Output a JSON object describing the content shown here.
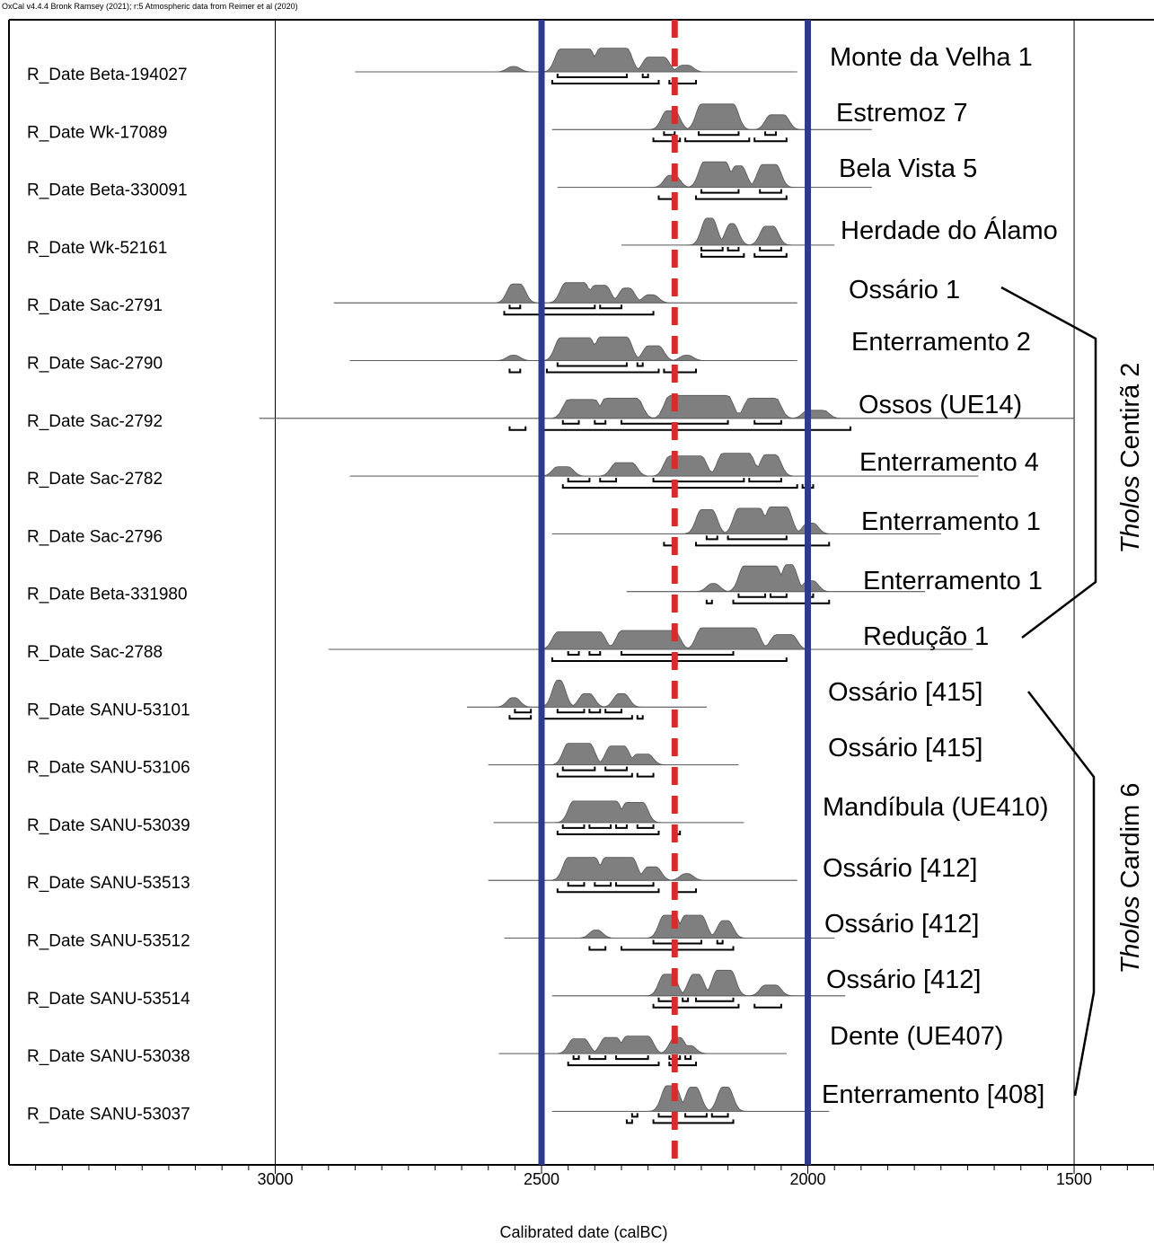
{
  "header": "OxCal v4.4.4 Bronk Ramsey (2021); r:5 Atmospheric data from Reimer et al (2020)",
  "chart_data": {
    "type": "density",
    "xlabel": "Calibrated date (calBC)",
    "xlim": [
      3500,
      1350
    ],
    "x_ticks": [
      3000,
      2500,
      2000,
      1500
    ],
    "x_tick_labels": [
      "3000",
      "2500",
      "2000",
      "1500"
    ],
    "reference_lines": [
      {
        "type": "solid",
        "value": 2500,
        "color": "#2e3a8c"
      },
      {
        "type": "solid",
        "value": 2000,
        "color": "#2e3a8c"
      },
      {
        "type": "dashed",
        "value": 2250,
        "color": "#d92b2b"
      }
    ],
    "rows": [
      {
        "label": "R_Date Beta-194027",
        "site": "Monte da Velha 1",
        "range": [
          2850,
          2020
        ],
        "peaks": [
          [
            2465,
            2410,
            85
          ],
          [
            2390,
            2340,
            88
          ],
          [
            2300,
            2270,
            55
          ],
          [
            2235,
            2225,
            25
          ],
          [
            2555,
            2550,
            20
          ]
        ],
        "b68": [
          [
            2470,
            2340
          ],
          [
            2310,
            2300
          ]
        ],
        "b95": [
          [
            2480,
            2280
          ],
          [
            2260,
            2210
          ]
        ]
      },
      {
        "label": "R_Date Wk-17089",
        "site": "Estremoz 7",
        "range": [
          2480,
          1880
        ],
        "peaks": [
          [
            2265,
            2250,
            70
          ],
          [
            2200,
            2140,
            95
          ],
          [
            2070,
            2045,
            55
          ]
        ],
        "b68": [
          [
            2270,
            2250
          ],
          [
            2205,
            2130
          ],
          [
            2080,
            2060
          ]
        ],
        "b95": [
          [
            2290,
            2240
          ],
          [
            2230,
            2110
          ],
          [
            2100,
            2040
          ]
        ]
      },
      {
        "label": "R_Date Beta-330091",
        "site": "Bela Vista 5",
        "range": [
          2470,
          1880
        ],
        "peaks": [
          [
            2260,
            2250,
            45
          ],
          [
            2195,
            2155,
            95
          ],
          [
            2135,
            2125,
            80
          ],
          [
            2085,
            2060,
            85
          ]
        ],
        "b68": [
          [
            2200,
            2130
          ],
          [
            2090,
            2050
          ]
        ],
        "b95": [
          [
            2280,
            2250
          ],
          [
            2210,
            2040
          ]
        ]
      },
      {
        "label": "R_Date Wk-52161",
        "site": "Herdade do Álamo",
        "range": [
          2350,
          1950
        ],
        "peaks": [
          [
            2190,
            2180,
            100
          ],
          [
            2145,
            2140,
            80
          ],
          [
            2080,
            2065,
            70
          ]
        ],
        "b68": [
          [
            2200,
            2160
          ],
          [
            2150,
            2130
          ],
          [
            2090,
            2050
          ]
        ],
        "b95": [
          [
            2200,
            2120
          ],
          [
            2100,
            2040
          ]
        ]
      },
      {
        "label": "R_Date Sac-2791",
        "site": "Ossário 1",
        "range": [
          2890,
          2020
        ],
        "peaks": [
          [
            2555,
            2540,
            70
          ],
          [
            2455,
            2420,
            75
          ],
          [
            2400,
            2380,
            65
          ],
          [
            2345,
            2335,
            55
          ],
          [
            2300,
            2290,
            30
          ]
        ],
        "b68": [
          [
            2560,
            2540
          ],
          [
            2500,
            2400
          ],
          [
            2390,
            2350
          ]
        ],
        "b95": [
          [
            2570,
            2290
          ]
        ]
      },
      {
        "label": "R_Date Sac-2790",
        "site": "Enterramento 2",
        "range": [
          2860,
          2020
        ],
        "peaks": [
          [
            2465,
            2410,
            85
          ],
          [
            2390,
            2340,
            88
          ],
          [
            2300,
            2280,
            55
          ],
          [
            2230,
            2225,
            20
          ],
          [
            2555,
            2550,
            20
          ]
        ],
        "b68": [
          [
            2470,
            2340
          ],
          [
            2320,
            2310
          ]
        ],
        "b95": [
          [
            2560,
            2540
          ],
          [
            2490,
            2280
          ],
          [
            2270,
            2210
          ]
        ]
      },
      {
        "label": "R_Date Sac-2792",
        "site": "Ossos (UE14)",
        "range": [
          3030,
          1500
        ],
        "peaks": [
          [
            2450,
            2400,
            70
          ],
          [
            2380,
            2320,
            75
          ],
          [
            2260,
            2150,
            85
          ],
          [
            2110,
            2060,
            75
          ],
          [
            2000,
            1970,
            30
          ]
        ],
        "b68": [
          [
            2460,
            2430
          ],
          [
            2400,
            2380
          ],
          [
            2350,
            2150
          ],
          [
            2100,
            2050
          ]
        ],
        "b95": [
          [
            2560,
            2530
          ],
          [
            2500,
            1920
          ]
        ]
      },
      {
        "label": "R_Date Sac-2782",
        "site": "Enterramento 4",
        "range": [
          2860,
          1680
        ],
        "peaks": [
          [
            2470,
            2450,
            35
          ],
          [
            2360,
            2330,
            50
          ],
          [
            2260,
            2200,
            75
          ],
          [
            2160,
            2110,
            85
          ],
          [
            2080,
            2060,
            80
          ]
        ],
        "b68": [
          [
            2450,
            2410
          ],
          [
            2390,
            2360
          ],
          [
            2290,
            2120
          ],
          [
            2110,
            2050
          ]
        ],
        "b95": [
          [
            2460,
            2020
          ],
          [
            2010,
            1990
          ]
        ]
      },
      {
        "label": "R_Date Sac-2796",
        "site": "Enterramento 1",
        "range": [
          2480,
          1750
        ],
        "peaks": [
          [
            2200,
            2180,
            90
          ],
          [
            2130,
            2090,
            95
          ],
          [
            2070,
            2040,
            100
          ],
          [
            2000,
            1990,
            40
          ]
        ],
        "b68": [
          [
            2190,
            2170
          ],
          [
            2150,
            2040
          ]
        ],
        "b95": [
          [
            2270,
            2250
          ],
          [
            2210,
            1960
          ]
        ]
      },
      {
        "label": "R_Date Beta-331980",
        "site": "Enterramento 1",
        "range": [
          2340,
          1780
        ],
        "peaks": [
          [
            2180,
            2175,
            30
          ],
          [
            2120,
            2060,
            95
          ],
          [
            2040,
            2030,
            100
          ],
          [
            2000,
            1990,
            40
          ]
        ],
        "b68": [
          [
            2130,
            2080
          ],
          [
            2070,
            2040
          ],
          [
            2000,
            1990
          ]
        ],
        "b95": [
          [
            2190,
            2180
          ],
          [
            2140,
            1960
          ]
        ]
      },
      {
        "label": "R_Date Sac-2788",
        "site": "Redução 1",
        "range": [
          2900,
          1690
        ],
        "peaks": [
          [
            2470,
            2390,
            65
          ],
          [
            2350,
            2250,
            70
          ],
          [
            2200,
            2100,
            80
          ],
          [
            2060,
            2030,
            55
          ]
        ],
        "b68": [
          [
            2450,
            2430
          ],
          [
            2410,
            2390
          ],
          [
            2350,
            2140
          ]
        ],
        "b95": [
          [
            2480,
            2040
          ]
        ]
      },
      {
        "label": "R_Date SANU-53101",
        "site": "Ossário [415]",
        "range": [
          2640,
          2190
        ],
        "peaks": [
          [
            2470,
            2465,
            100
          ],
          [
            2420,
            2410,
            50
          ],
          [
            2355,
            2345,
            50
          ],
          [
            2555,
            2550,
            35
          ]
        ],
        "b68": [
          [
            2550,
            2520
          ],
          [
            2470,
            2420
          ],
          [
            2410,
            2390
          ],
          [
            2380,
            2350
          ]
        ],
        "b95": [
          [
            2560,
            2520
          ],
          [
            2500,
            2330
          ],
          [
            2320,
            2310
          ]
        ]
      },
      {
        "label": "R_Date SANU-53106",
        "site": "Ossário [415]",
        "range": [
          2600,
          2130
        ],
        "peaks": [
          [
            2450,
            2410,
            80
          ],
          [
            2370,
            2345,
            70
          ],
          [
            2320,
            2300,
            40
          ]
        ],
        "b68": [
          [
            2460,
            2400
          ],
          [
            2380,
            2340
          ]
        ],
        "b95": [
          [
            2470,
            2330
          ],
          [
            2320,
            2290
          ]
        ]
      },
      {
        "label": "R_Date SANU-53039",
        "site": "Mandíbula (UE410)",
        "range": [
          2590,
          2120
        ],
        "peaks": [
          [
            2440,
            2360,
            80
          ],
          [
            2340,
            2310,
            75
          ]
        ],
        "b68": [
          [
            2460,
            2420
          ],
          [
            2410,
            2370
          ],
          [
            2360,
            2340
          ],
          [
            2320,
            2290
          ]
        ],
        "b95": [
          [
            2470,
            2280
          ],
          [
            2250,
            2240
          ]
        ]
      },
      {
        "label": "R_Date SANU-53513",
        "site": "Ossário [412]",
        "range": [
          2600,
          2020
        ],
        "peaks": [
          [
            2450,
            2400,
            85
          ],
          [
            2380,
            2330,
            85
          ],
          [
            2300,
            2285,
            50
          ],
          [
            2230,
            2225,
            25
          ]
        ],
        "b68": [
          [
            2450,
            2420
          ],
          [
            2400,
            2370
          ],
          [
            2360,
            2290
          ]
        ],
        "b95": [
          [
            2470,
            2280
          ],
          [
            2250,
            2210
          ]
        ]
      },
      {
        "label": "R_Date SANU-53512",
        "site": "Ossário [412]",
        "range": [
          2570,
          1950
        ],
        "peaks": [
          [
            2400,
            2395,
            30
          ],
          [
            2270,
            2250,
            85
          ],
          [
            2230,
            2200,
            85
          ],
          [
            2160,
            2150,
            65
          ]
        ],
        "b68": [
          [
            2290,
            2200
          ],
          [
            2170,
            2160
          ]
        ],
        "b95": [
          [
            2410,
            2380
          ],
          [
            2350,
            2140
          ]
        ]
      },
      {
        "label": "R_Date SANU-53514",
        "site": "Ossário [412]",
        "range": [
          2480,
          1930
        ],
        "peaks": [
          [
            2270,
            2255,
            80
          ],
          [
            2215,
            2205,
            80
          ],
          [
            2170,
            2145,
            95
          ],
          [
            2080,
            2060,
            40
          ]
        ],
        "b68": [
          [
            2280,
            2250
          ],
          [
            2235,
            2225
          ],
          [
            2210,
            2140
          ]
        ],
        "b95": [
          [
            2290,
            2130
          ],
          [
            2100,
            2050
          ]
        ]
      },
      {
        "label": "R_Date SANU-53038",
        "site": "Dente (UE407)",
        "range": [
          2580,
          2040
        ],
        "peaks": [
          [
            2440,
            2420,
            55
          ],
          [
            2380,
            2360,
            60
          ],
          [
            2340,
            2300,
            65
          ],
          [
            2250,
            2240,
            60
          ],
          [
            2230,
            2220,
            30
          ]
        ],
        "b68": [
          [
            2440,
            2430
          ],
          [
            2410,
            2380
          ],
          [
            2360,
            2300
          ],
          [
            2260,
            2240
          ],
          [
            2230,
            2220
          ]
        ],
        "b95": [
          [
            2450,
            2280
          ],
          [
            2260,
            2210
          ]
        ]
      },
      {
        "label": "R_Date SANU-53037",
        "site": "Enterramento [408]",
        "range": [
          2480,
          1960
        ],
        "peaks": [
          [
            2265,
            2250,
            95
          ],
          [
            2220,
            2210,
            90
          ],
          [
            2160,
            2150,
            90
          ]
        ],
        "b68": [
          [
            2330,
            2320
          ],
          [
            2280,
            2250
          ],
          [
            2230,
            2190
          ],
          [
            2180,
            2150
          ]
        ],
        "b95": [
          [
            2340,
            2330
          ],
          [
            2290,
            2140
          ]
        ]
      }
    ],
    "groups": [
      {
        "label_italic": "Tholos",
        "label_rest": "Centirã 2",
        "from_row": 4,
        "to_row": 10
      },
      {
        "label_italic": "Tholos",
        "label_rest": "Cardim 6",
        "from_row": 11,
        "to_row": 18
      }
    ]
  }
}
